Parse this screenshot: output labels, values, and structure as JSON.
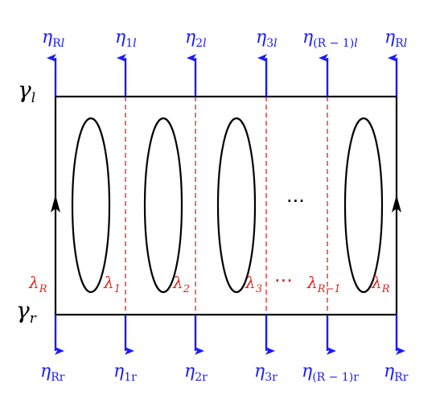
{
  "top_labels": [
    {
      "base": "η",
      "sub": "R",
      "sub_italic": "l"
    },
    {
      "base": "η",
      "sub": "1",
      "sub_italic": "l"
    },
    {
      "base": "η",
      "sub": "2",
      "sub_italic": "l"
    },
    {
      "base": "η",
      "sub": "3",
      "sub_italic": "l"
    },
    {
      "base": "η",
      "sub": "(R − 1)",
      "sub_italic": "l"
    },
    {
      "base": "η",
      "sub": "R",
      "sub_italic": "l"
    }
  ],
  "bottom_labels": [
    {
      "base": "η",
      "sub": "Rr"
    },
    {
      "base": "η",
      "sub": "1r"
    },
    {
      "base": "η",
      "sub": "2r"
    },
    {
      "base": "η",
      "sub": "3r"
    },
    {
      "base": "η",
      "sub": "(R − 1)r"
    },
    {
      "base": "η",
      "sub": "Rr"
    }
  ],
  "gamma_top": {
    "base": "γ",
    "sub": "l"
  },
  "gamma_bottom": {
    "base": "γ",
    "sub": "r"
  },
  "lambda_labels": [
    {
      "base": "λ",
      "sub": "R"
    },
    {
      "base": "λ",
      "sub": "1"
    },
    {
      "base": "λ",
      "sub": "2"
    },
    {
      "base": "λ",
      "sub": "3"
    },
    {
      "base": "λ",
      "sub": "R−1"
    },
    {
      "base": "λ",
      "sub": "R"
    }
  ],
  "ellipsis_middle": "···",
  "ellipsis_bottom": "···",
  "colors": {
    "frame": "#000000",
    "arrow": "#1a1aff",
    "dashed": "#e0241b",
    "lambda": "#e0241b"
  }
}
